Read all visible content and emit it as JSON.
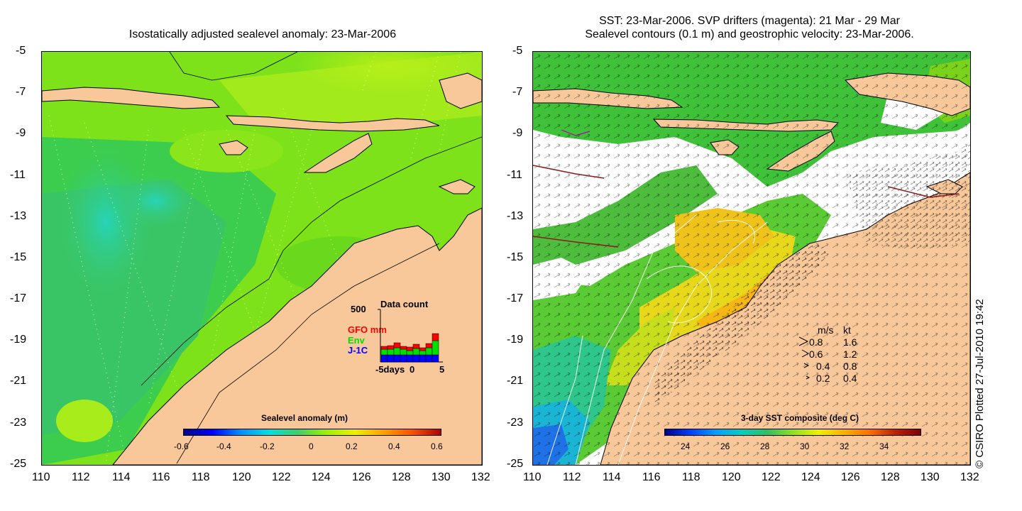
{
  "left_panel": {
    "title": "Isostatically adjusted sealevel anomaly: 23-Mar-2006",
    "colorbar": {
      "label": "Sealevel anomaly (m)",
      "ticks": [
        "-0.6",
        "-0.4",
        "-0.2",
        "0",
        "0.2",
        "0.4",
        "0.6"
      ]
    },
    "data_count": {
      "title": "Data count",
      "ymax_label": "500",
      "series": [
        {
          "name": "GFO mm",
          "color": "#ff0000"
        },
        {
          "name": "Env",
          "color": "#00e000"
        },
        {
          "name": "J-1C",
          "color": "#0000ff"
        }
      ],
      "x_labels": [
        "-5days",
        "0",
        "5"
      ]
    }
  },
  "right_panel": {
    "title_line1": "SST: 23-Mar-2006. SVP drifters (magenta): 21 Mar - 29 Mar",
    "title_line2": "Sealevel contours (0.1 m) and geostrophic velocity: 23-Mar-2006.",
    "colorbar": {
      "label": "3-day SST composite (deg C)",
      "ticks": [
        "24",
        "26",
        "28",
        "30",
        "32",
        "34"
      ]
    },
    "velocity_legend": {
      "header_ms": "m/s",
      "header_kt": "kt",
      "rows": [
        {
          "ms": "0.8",
          "kt": "1.6"
        },
        {
          "ms": "0.6",
          "kt": "1.2"
        },
        {
          "ms": "0.4",
          "kt": "0.8"
        },
        {
          "ms": "0.2",
          "kt": "0.4"
        }
      ]
    }
  },
  "axes": {
    "x_ticks": [
      "110",
      "112",
      "114",
      "116",
      "118",
      "120",
      "122",
      "124",
      "126",
      "128",
      "130",
      "132"
    ],
    "y_ticks": [
      "-5",
      "-7",
      "-9",
      "-11",
      "-13",
      "-15",
      "-17",
      "-19",
      "-21",
      "-23",
      "-25"
    ]
  },
  "credit": "© CSIRO Plotted 27-Jul-2010 19:42"
}
